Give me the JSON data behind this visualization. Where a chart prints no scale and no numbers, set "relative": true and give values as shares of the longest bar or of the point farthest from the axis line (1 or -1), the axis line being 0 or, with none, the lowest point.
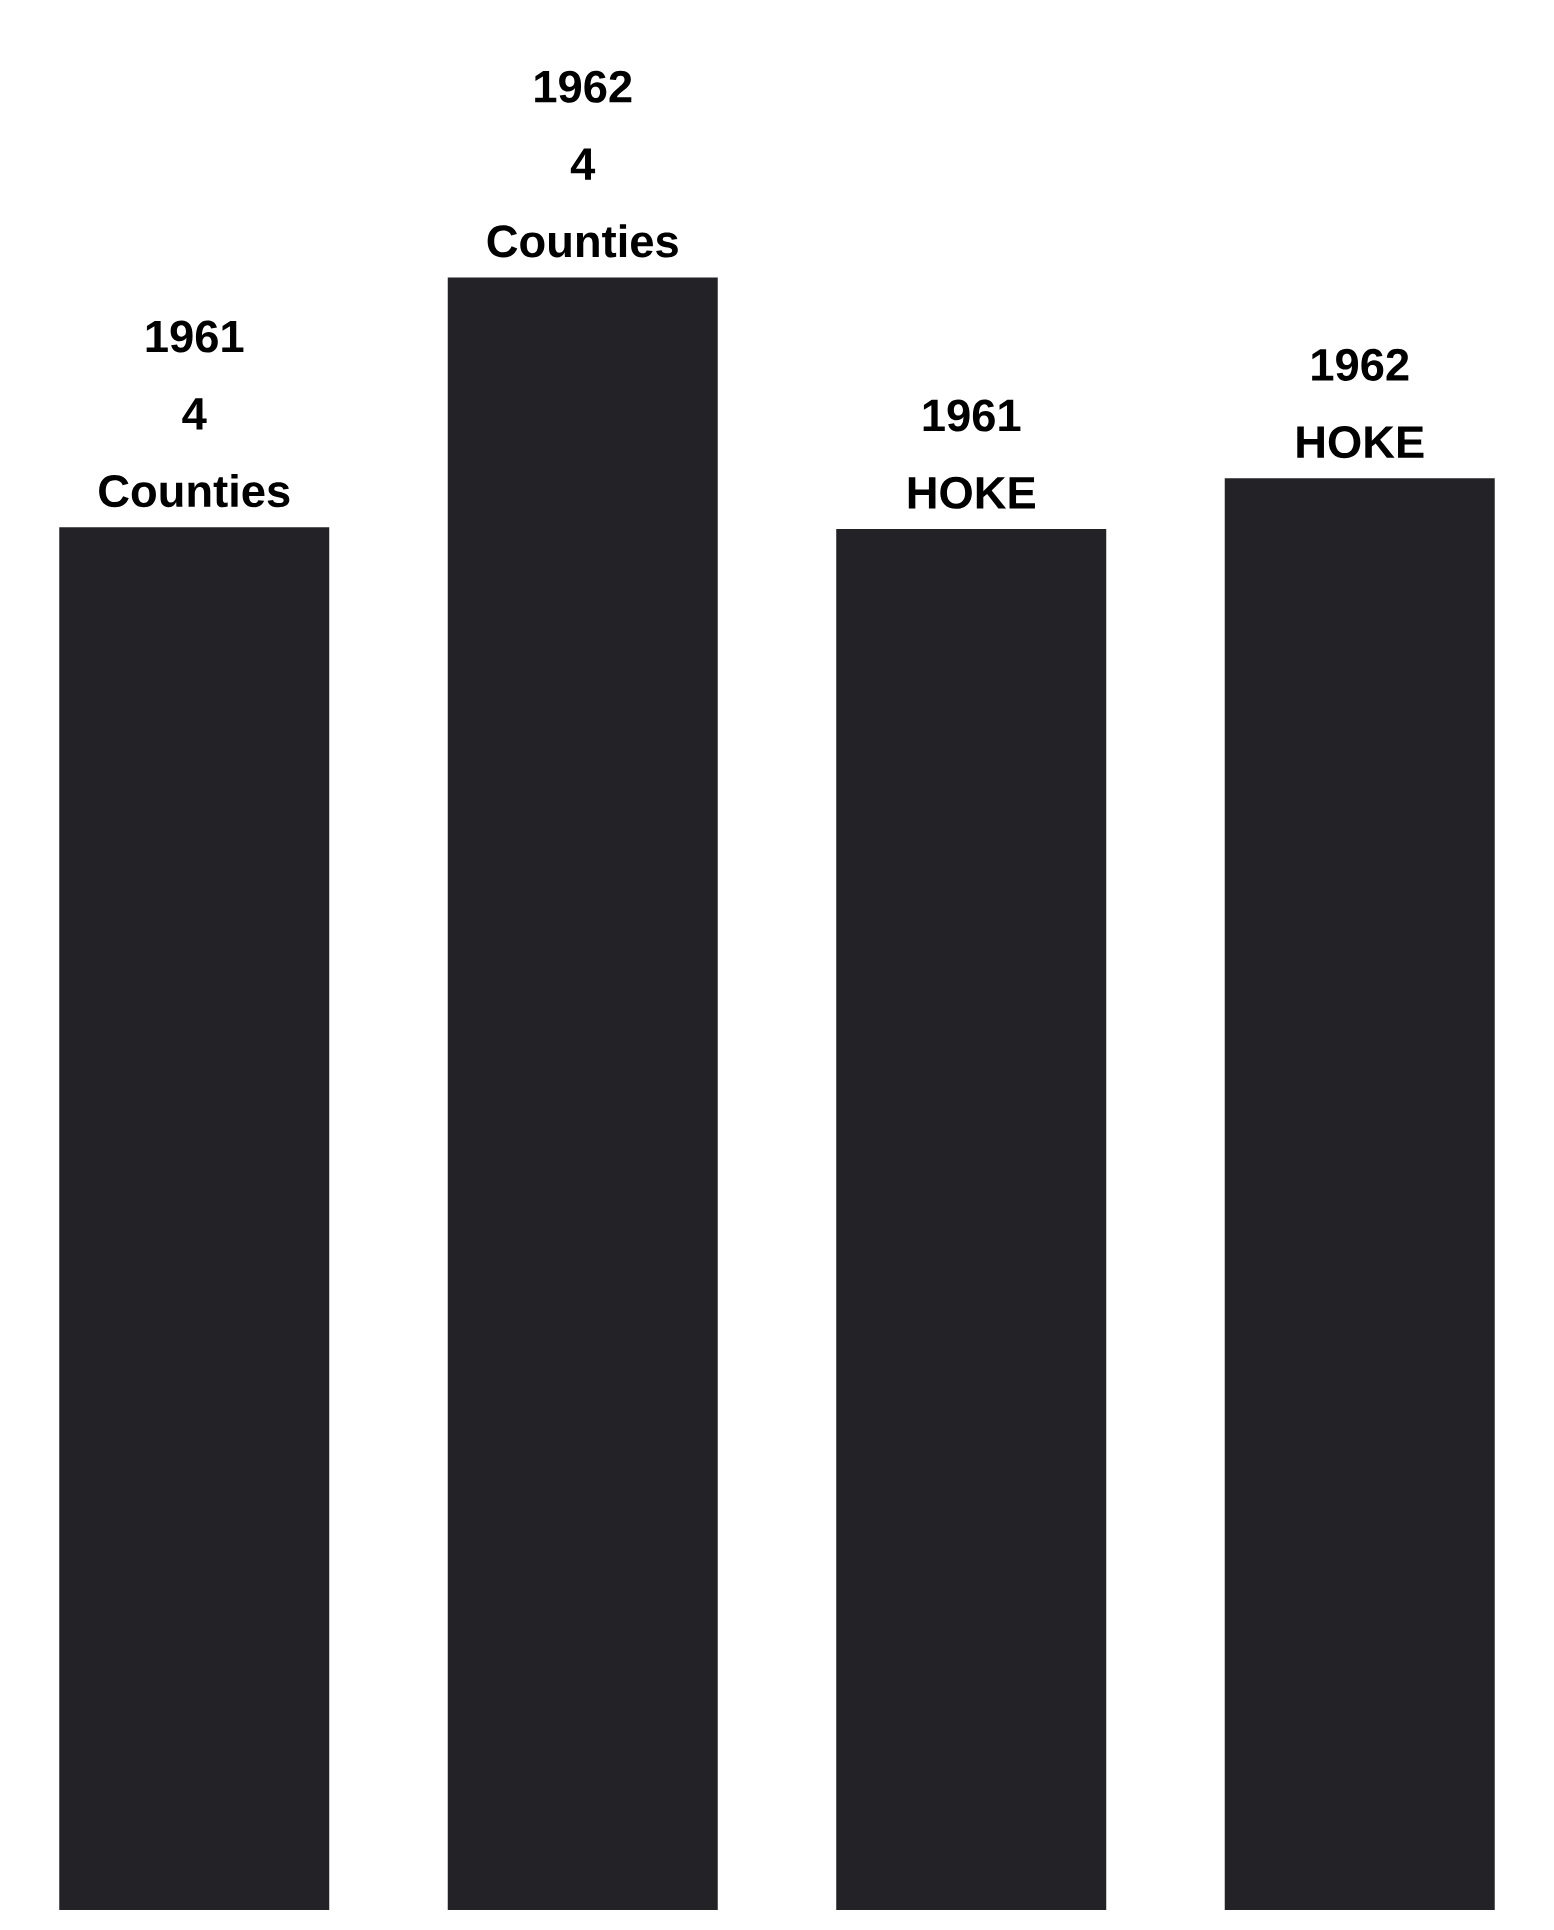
{
  "chart_data": {
    "type": "bar",
    "relative": true,
    "categories": [
      "1961 4 Counties",
      "1962 4 Counties",
      "1961 HOKE",
      "1962 HOKE"
    ],
    "values": [
      0.847,
      1,
      0.846,
      0.877
    ],
    "color": "#232327"
  }
}
